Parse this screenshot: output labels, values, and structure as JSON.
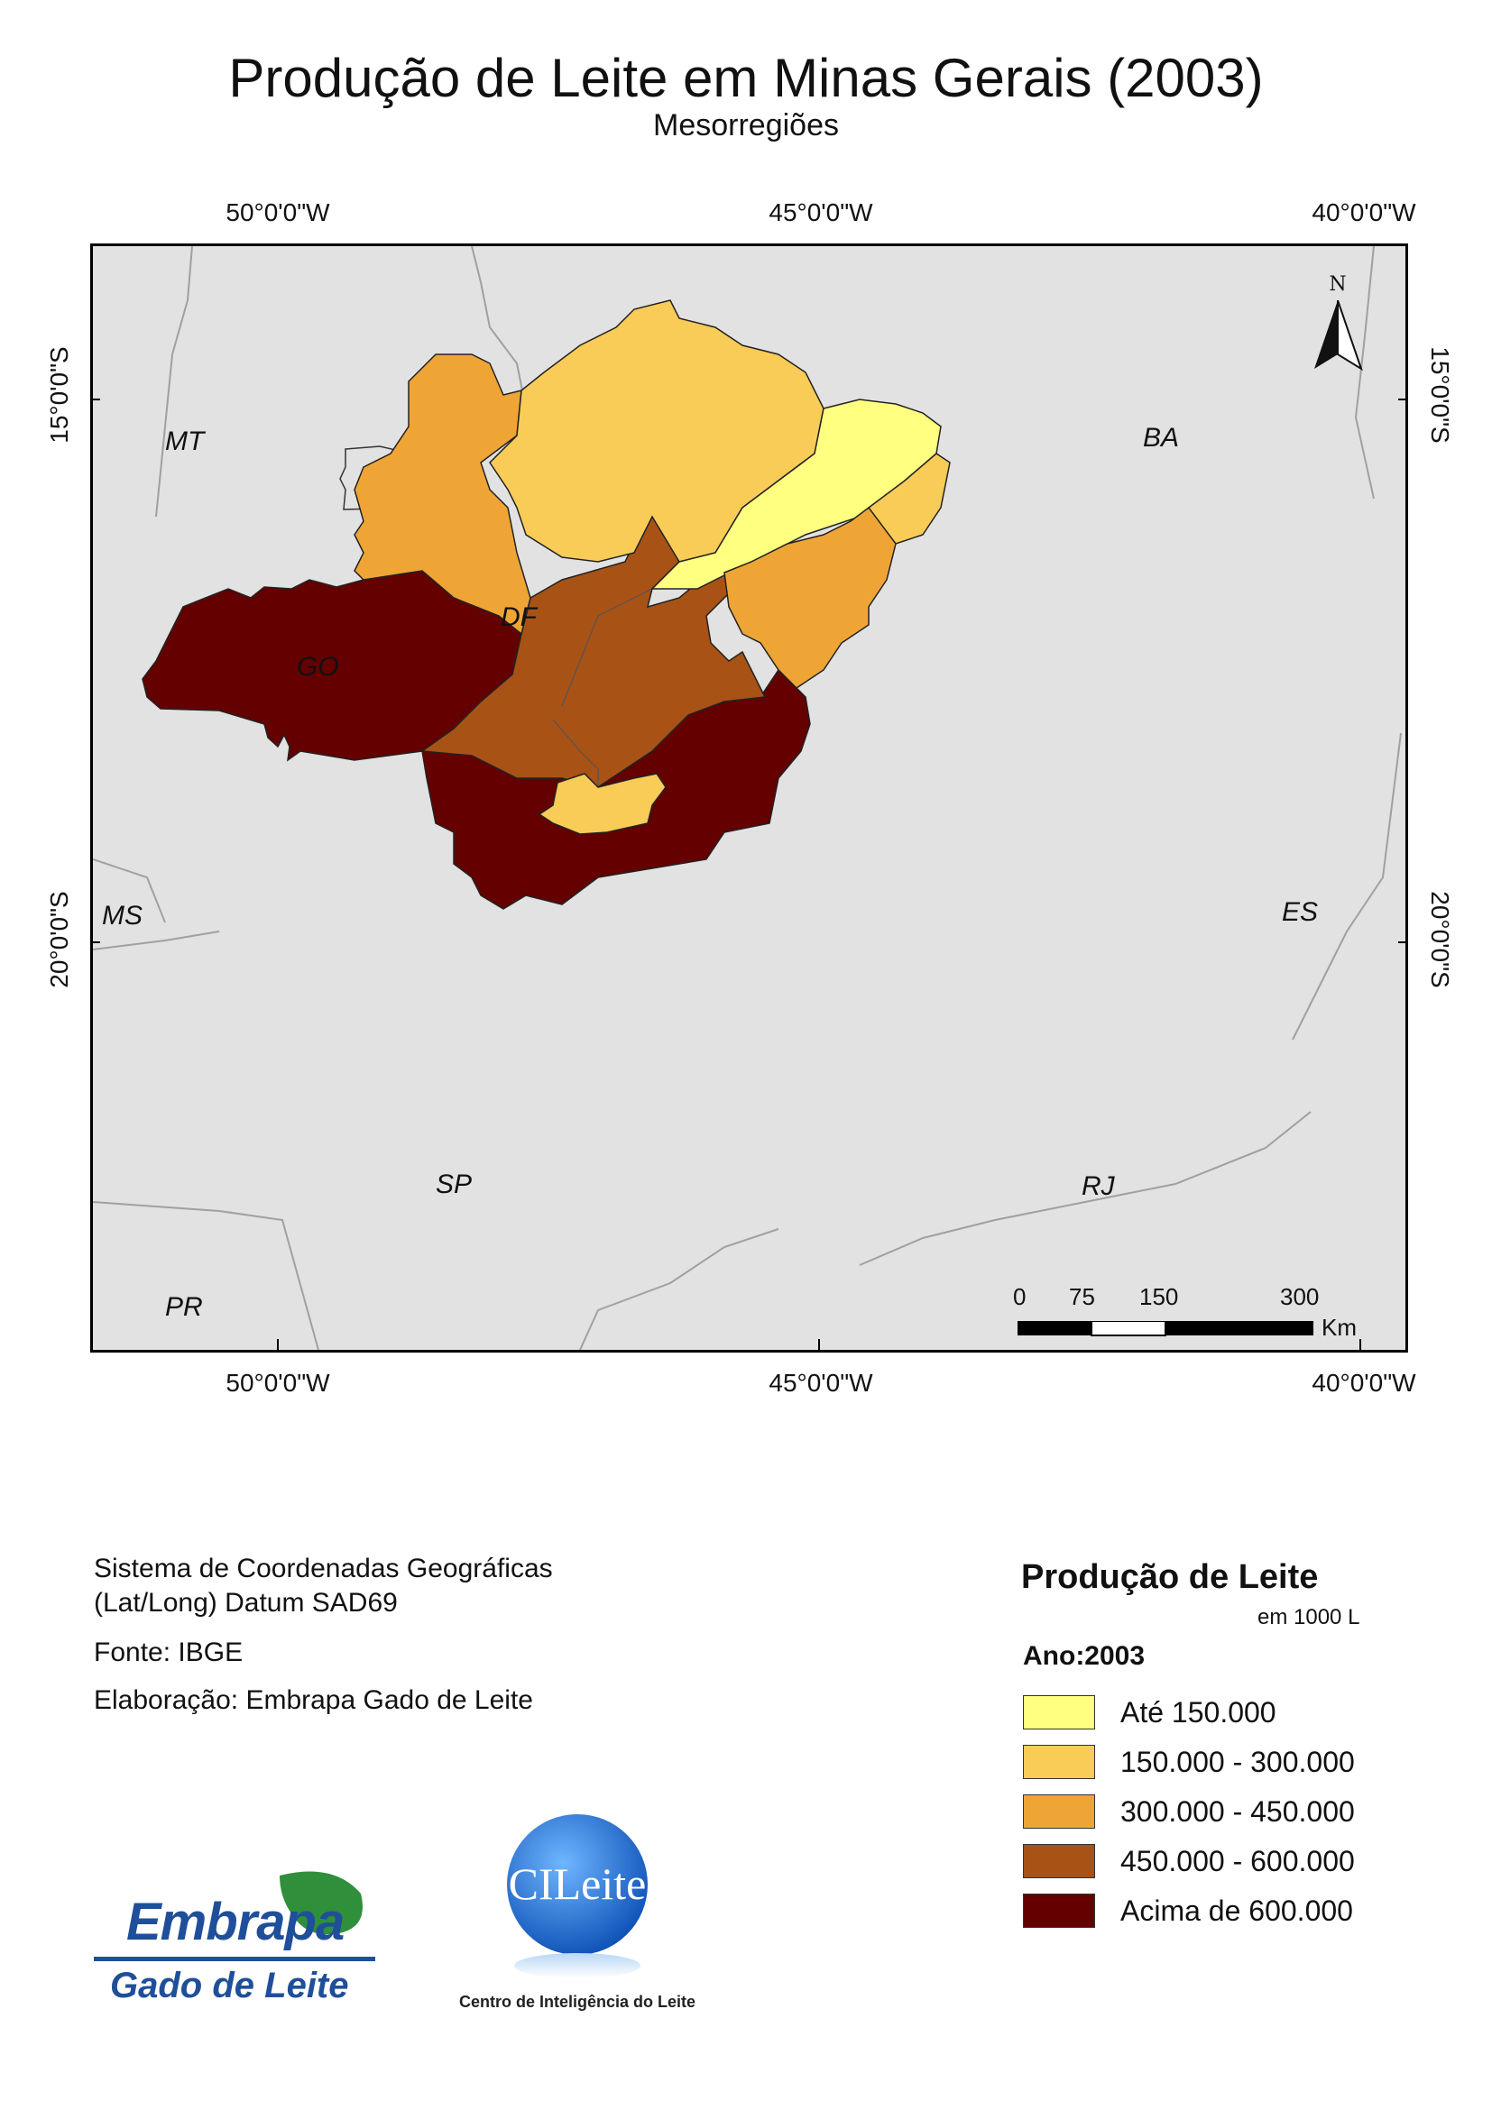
{
  "header": {
    "title": "Produção de Leite em Minas Gerais (2003)",
    "subtitle": "Mesorregiões"
  },
  "graticule": {
    "lon_labels": [
      "50°0'0\"W",
      "45°0'0\"W",
      "40°0'0\"W"
    ],
    "lat_labels": [
      "15°0'0\"S",
      "20°0'0\"S"
    ]
  },
  "map": {
    "states": [
      "MT",
      "BA",
      "GO",
      "DF",
      "MS",
      "ES",
      "SP",
      "RJ",
      "PR"
    ],
    "north_arrow_label": "N",
    "scale_bar": {
      "ticks": [
        "0",
        "75",
        "150",
        "300"
      ],
      "unit": "Km"
    },
    "colors": {
      "background": "#e2e2e2",
      "ate_150": "#ffff80",
      "150_300": "#f9cc58",
      "300_450": "#efa535",
      "450_600": "#a85216",
      "acima_600": "#640000"
    }
  },
  "info": {
    "coord_system_line1": "Sistema de Coordenadas Geográficas",
    "coord_system_line2": "(Lat/Long) Datum SAD69",
    "source": "Fonte: IBGE",
    "author": "Elaboração: Embrapa Gado de Leite"
  },
  "legend": {
    "title": "Produção de Leite",
    "unit": "em 1000 L",
    "year_label": "Ano:2003",
    "items": [
      {
        "label": "Até 150.000",
        "color": "#ffff80"
      },
      {
        "label": "150.000 - 300.000",
        "color": "#f9cc58"
      },
      {
        "label": "300.000 - 450.000",
        "color": "#efa535"
      },
      {
        "label": "450.000 - 600.000",
        "color": "#a85216"
      },
      {
        "label": "Acima de 600.000",
        "color": "#640000"
      }
    ]
  },
  "logos": {
    "embrapa_name": "Embrapa",
    "embrapa_sub": "Gado de Leite",
    "cileite_name": "CILeite",
    "cileite_sub": "Centro de Inteligência do Leite"
  }
}
